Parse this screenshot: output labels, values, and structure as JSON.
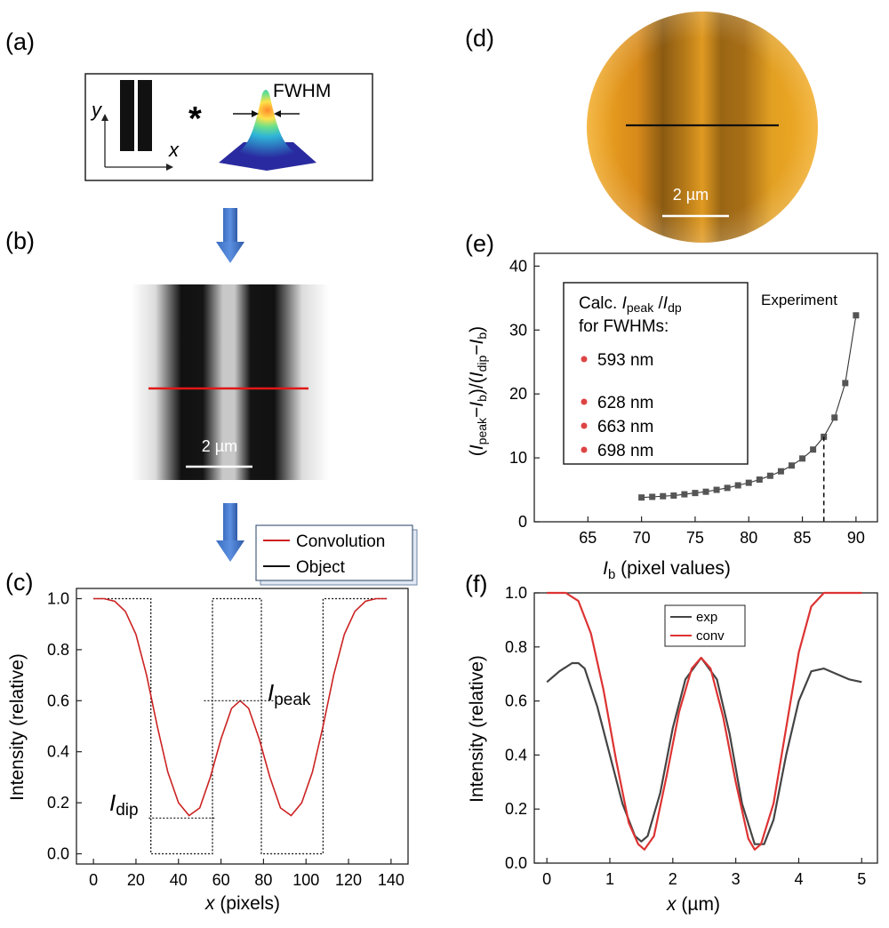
{
  "panels": {
    "a": {
      "label": "(a)",
      "axis_y": "y",
      "axis_x": "x",
      "operator": "*",
      "fwhm_label": "FWHM"
    },
    "b": {
      "label": "(b)",
      "scalebar": "2 µm"
    },
    "d": {
      "label": "(d)",
      "scalebar": "2 µm",
      "image_tint": "#f2a922"
    }
  },
  "chart_data": [
    {
      "id": "c",
      "panel_label": "(c)",
      "type": "line",
      "xlabel_var": "x",
      "xlabel_rest": " (pixels)",
      "ylabel": "Intensity (relative)",
      "xlim": [
        -8,
        148
      ],
      "ylim": [
        -0.04,
        1.04
      ],
      "xticks": [
        0,
        20,
        40,
        60,
        80,
        100,
        120,
        140
      ],
      "yticks": [
        0.0,
        0.2,
        0.4,
        0.6,
        0.8,
        1.0
      ],
      "ytick_labels": [
        "0.0",
        "0.2",
        "0.4",
        "0.6",
        "0.8",
        "1.0"
      ],
      "legend": [
        "Convolution",
        "Object"
      ],
      "series": [
        {
          "name": "Convolution",
          "color": "#cc2222",
          "x": [
            0,
            5,
            10,
            15,
            20,
            25,
            30,
            35,
            40,
            45,
            50,
            55,
            60,
            65,
            69,
            73,
            78,
            83,
            88,
            93,
            98,
            103,
            108,
            113,
            118,
            123,
            128,
            133,
            138
          ],
          "y": [
            1.0,
            1.0,
            0.99,
            0.95,
            0.86,
            0.7,
            0.5,
            0.32,
            0.2,
            0.15,
            0.18,
            0.3,
            0.45,
            0.57,
            0.6,
            0.57,
            0.45,
            0.3,
            0.18,
            0.15,
            0.2,
            0.32,
            0.5,
            0.7,
            0.86,
            0.95,
            0.99,
            1.0,
            1.0
          ]
        },
        {
          "name": "Object",
          "color": "#111111",
          "dashed": true,
          "x": [
            0,
            27,
            27,
            56,
            56,
            79,
            79,
            108,
            108,
            138
          ],
          "y": [
            1.0,
            1.0,
            0.0,
            0.0,
            1.0,
            1.0,
            0.0,
            0.0,
            1.0,
            1.0
          ]
        }
      ],
      "annotations": {
        "peak": {
          "main": "I",
          "sub": "peak",
          "y": 0.6
        },
        "dip": {
          "main": "I",
          "sub": "dip",
          "y": 0.14
        }
      }
    },
    {
      "id": "e",
      "panel_label": "(e)",
      "type": "scatter",
      "xlabel_var": "I",
      "xlabel_sub": "b",
      "xlabel_rest": " (pixel values)",
      "ylabel": "(Ipeak−Ib)/(Idip−Ib)",
      "xlim": [
        60,
        92
      ],
      "ylim": [
        0,
        42
      ],
      "xticks": [
        65,
        70,
        75,
        80,
        85,
        90
      ],
      "yticks": [
        0,
        10,
        20,
        30,
        40
      ],
      "annotation": "Experiment",
      "legend_title_1": "Calc. ",
      "legend_title_1_var": "I",
      "legend_title_1_sub": "peak",
      "legend_title_1_sep": " /",
      "legend_title_1_var2": "I",
      "legend_title_1_sub2": "dp",
      "legend_title_2": "for FWHMs:",
      "legend_items": [
        "593 nm",
        "628 nm",
        "663 nm",
        "698 nm"
      ],
      "legend_dot_color": "#dd4444",
      "marker_color": "#555555",
      "experiment_x": 87,
      "series": [
        {
          "name": "Calc.",
          "x": [
            70,
            71,
            72,
            73,
            74,
            75,
            76,
            77,
            78,
            79,
            80,
            81,
            82,
            83,
            84,
            85,
            86,
            87,
            88,
            89,
            90
          ],
          "y": [
            3.8,
            3.9,
            4.0,
            4.1,
            4.3,
            4.5,
            4.7,
            5.0,
            5.3,
            5.7,
            6.1,
            6.6,
            7.2,
            7.9,
            8.8,
            9.9,
            11.3,
            13.3,
            16.3,
            21.7,
            32.3
          ]
        }
      ]
    },
    {
      "id": "f",
      "panel_label": "(f)",
      "type": "line",
      "xlabel_var": "x",
      "xlabel_rest": " (µm)",
      "ylabel": "Intensity (relative)",
      "xlim": [
        -0.2,
        5.25
      ],
      "ylim": [
        0,
        1.0
      ],
      "xticks": [
        0,
        1,
        2,
        3,
        4,
        5
      ],
      "yticks": [
        0.0,
        0.2,
        0.4,
        0.6,
        0.8,
        1.0
      ],
      "ytick_labels": [
        "0.0",
        "0.2",
        "0.4",
        "0.6",
        "0.8",
        "1.0"
      ],
      "legend": [
        "exp",
        "conv"
      ],
      "series": [
        {
          "name": "exp",
          "color": "#444444",
          "x": [
            0.0,
            0.2,
            0.4,
            0.5,
            0.6,
            0.8,
            1.0,
            1.2,
            1.4,
            1.5,
            1.6,
            1.8,
            2.0,
            2.2,
            2.45,
            2.7,
            2.9,
            3.1,
            3.3,
            3.45,
            3.6,
            3.8,
            4.0,
            4.2,
            4.4,
            4.6,
            4.8,
            5.0
          ],
          "y": [
            0.67,
            0.71,
            0.74,
            0.74,
            0.72,
            0.58,
            0.4,
            0.22,
            0.1,
            0.08,
            0.1,
            0.26,
            0.5,
            0.68,
            0.76,
            0.68,
            0.48,
            0.22,
            0.07,
            0.07,
            0.16,
            0.4,
            0.6,
            0.71,
            0.72,
            0.7,
            0.68,
            0.67
          ]
        },
        {
          "name": "conv",
          "color": "#dd3333",
          "x": [
            0.0,
            0.3,
            0.5,
            0.7,
            0.9,
            1.1,
            1.3,
            1.45,
            1.55,
            1.7,
            1.9,
            2.1,
            2.3,
            2.45,
            2.6,
            2.8,
            3.0,
            3.2,
            3.3,
            3.4,
            3.6,
            3.8,
            4.0,
            4.2,
            4.4,
            4.6,
            4.8,
            5.0
          ],
          "y": [
            1.0,
            1.0,
            0.97,
            0.85,
            0.64,
            0.38,
            0.15,
            0.07,
            0.05,
            0.1,
            0.32,
            0.56,
            0.72,
            0.76,
            0.72,
            0.54,
            0.3,
            0.09,
            0.05,
            0.07,
            0.22,
            0.5,
            0.78,
            0.95,
            1.0,
            1.0,
            1.0,
            1.0
          ]
        }
      ]
    }
  ]
}
